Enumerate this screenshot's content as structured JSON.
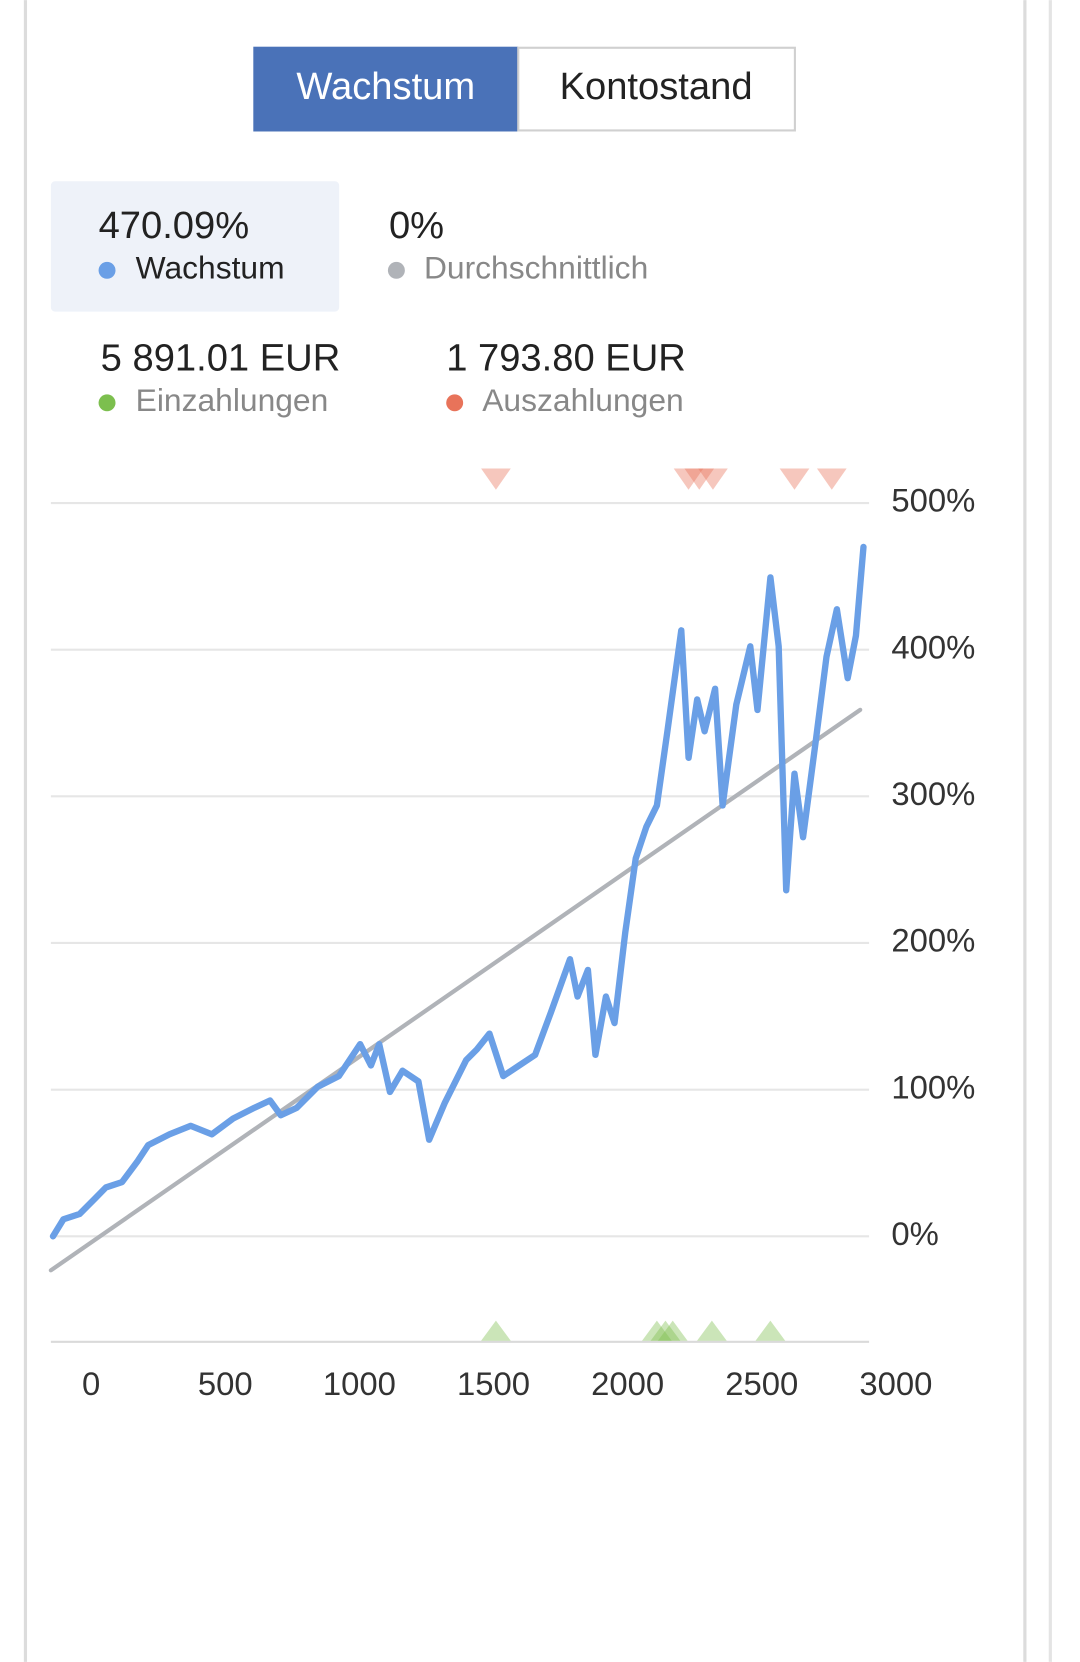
{
  "tabs": [
    "Wachstum",
    "Kontostand"
  ],
  "chart_data": {
    "type": "line",
    "series": [
      {
        "name": "Wachstum",
        "summary": "470.09%",
        "color": "#6a9fe6",
        "x": [
          -142,
          -103,
          -43,
          16,
          55,
          115,
          174,
          213,
          292,
          371,
          450,
          529,
          608,
          667,
          707,
          766,
          845,
          924,
          1003,
          1043,
          1074,
          1114,
          1161,
          1220,
          1260,
          1319,
          1398,
          1438,
          1485,
          1536,
          1596,
          1655,
          1714,
          1785,
          1813,
          1852,
          1880,
          1919,
          1951,
          1991,
          2030,
          2070,
          2109,
          2148,
          2200,
          2227,
          2259,
          2287,
          2326,
          2354,
          2405,
          2457,
          2484,
          2532,
          2563,
          2591,
          2622,
          2654,
          2701,
          2741,
          2780,
          2820,
          2851,
          2879
        ],
        "values": [
          0,
          11.6,
          15.2,
          26,
          33.3,
          36.9,
          51.4,
          62.2,
          69.5,
          75.3,
          69.5,
          80.3,
          87.6,
          92.6,
          82.5,
          87.6,
          102,
          109.3,
          131,
          116.5,
          131,
          98.4,
          112.9,
          105.6,
          65.8,
          91.2,
          120.1,
          127.4,
          138.2,
          109.3,
          116.5,
          123.7,
          152.7,
          188.9,
          163.5,
          181.6,
          123.7,
          163.5,
          145.4,
          206.9,
          257.6,
          279.3,
          293.8,
          344.4,
          413.2,
          326.3,
          366.1,
          344.4,
          373.4,
          293.8,
          362.5,
          402.3,
          358.9,
          449.3,
          402.3,
          235.9,
          315.5,
          272.1,
          337.2,
          395.1,
          427.6,
          380.6,
          409.6,
          470.09
        ]
      },
      {
        "name": "Durchschnittlich",
        "summary": "0%",
        "color": "#b0b3b8",
        "x": [
          -150,
          2867
        ],
        "values": [
          -23.2,
          359
        ]
      }
    ],
    "deposits": {
      "name": "Einzahlungen",
      "total": "5 891.01 EUR",
      "color": "#7cbf4e",
      "x": [
        1509,
        2109,
        2141,
        2168,
        2314,
        2532
      ]
    },
    "withdrawals": {
      "name": "Auszahlungen",
      "total": "1 793.80 EUR",
      "color": "#e8735a",
      "x": [
        1509,
        2227,
        2267,
        2318,
        2622,
        2761
      ]
    },
    "xlim": [
      -150,
      2900
    ],
    "ylim": [
      -72,
      525
    ],
    "xticks": [
      0,
      500,
      1000,
      1500,
      2000,
      2500,
      3000
    ],
    "yticks": [
      {
        "value": 0,
        "label": "0%"
      },
      {
        "value": 100,
        "label": "100%"
      },
      {
        "value": 200,
        "label": "200%"
      },
      {
        "value": 300,
        "label": "300%"
      },
      {
        "value": 400,
        "label": "400%"
      },
      {
        "value": 500,
        "label": "500%"
      }
    ],
    "grid": true
  }
}
